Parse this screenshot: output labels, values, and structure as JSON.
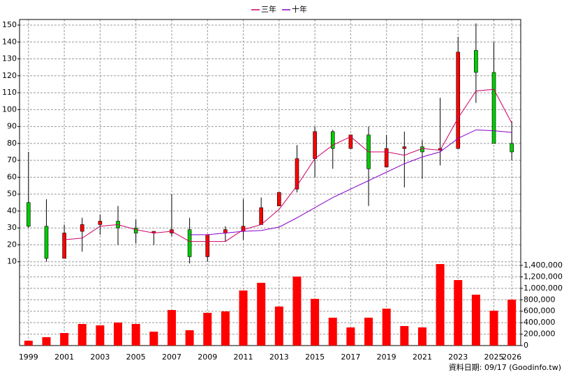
{
  "chart_data": [
    {
      "type": "candlestick",
      "categories": [
        "1999",
        null,
        "2001",
        null,
        "2003",
        null,
        "2005",
        null,
        "2007",
        null,
        "2009",
        null,
        "2011",
        null,
        "2013",
        null,
        "2015",
        null,
        "2017",
        null,
        "2019",
        null,
        "2021",
        null,
        "2023",
        null,
        "2025",
        "2026"
      ],
      "open": [
        45,
        31,
        12,
        28,
        32,
        34,
        30,
        27,
        27,
        29,
        13,
        27,
        28,
        32,
        43,
        53,
        71,
        87,
        77,
        85,
        66,
        77,
        78,
        76,
        77,
        135,
        122,
        80
      ],
      "high": [
        75,
        47,
        32,
        36,
        38,
        43,
        35,
        28,
        50,
        36,
        26,
        31,
        47,
        48,
        51,
        79,
        90,
        88,
        85,
        90,
        85,
        87,
        82,
        107,
        143,
        151,
        140,
        93
      ],
      "low": [
        30,
        10,
        12,
        16,
        26,
        20,
        21,
        20,
        25,
        9,
        10,
        22,
        23,
        32,
        43,
        51,
        60,
        65,
        77,
        43,
        66,
        54,
        59,
        67,
        77,
        104,
        80,
        70
      ],
      "close": [
        31,
        12,
        27,
        32,
        34,
        30,
        27,
        28,
        29,
        13,
        26,
        29,
        31,
        42,
        51,
        71,
        87,
        77,
        85,
        65,
        77,
        78,
        75,
        77,
        134,
        122,
        80,
        75
      ],
      "up_color": "#ff0000",
      "down_color": "#00cc00",
      "series": [
        {
          "name": "三年",
          "color": "#cc0066",
          "values": [
            null,
            null,
            23,
            24,
            31,
            32,
            29,
            27,
            28,
            22,
            22,
            22,
            29,
            32,
            41,
            55,
            71,
            79,
            84,
            75,
            75,
            73,
            77,
            76,
            95,
            111,
            112,
            92
          ]
        },
        {
          "name": "十年",
          "color": "#8800cc",
          "values": [
            null,
            null,
            null,
            null,
            null,
            null,
            null,
            null,
            null,
            26,
            26,
            27,
            28,
            28.5,
            30.5,
            36,
            42,
            48,
            53,
            58,
            63,
            68,
            72,
            75,
            83,
            88,
            87.5,
            86.5
          ]
        }
      ],
      "ylim": [
        7,
        153.3
      ],
      "yticks": [
        10,
        20,
        30,
        40,
        50,
        60,
        70,
        80,
        90,
        100,
        110,
        120,
        130,
        140,
        150
      ],
      "grid": true,
      "legend": "top"
    },
    {
      "type": "bar",
      "values": [
        85000,
        146000,
        219000,
        377000,
        353000,
        402000,
        377000,
        243000,
        621000,
        268000,
        572000,
        597000,
        962000,
        1096000,
        682000,
        1205000,
        816000,
        487000,
        317000,
        487000,
        645000,
        341000,
        317000,
        1424000,
        1144000,
        889000,
        609000,
        803000
      ],
      "color": "#ff0000",
      "ylim": [
        0,
        1424000
      ],
      "yticks": [
        0,
        {
          "value": 200000,
          "label": "200,000"
        },
        {
          "value": 400000,
          "label": "400,000"
        },
        {
          "value": 600000,
          "label": "600,000"
        },
        {
          "value": 800000,
          "label": "800,000"
        },
        {
          "value": 1000000,
          "label": "1,000,000"
        },
        {
          "value": 1200000,
          "label": "1,200,000"
        },
        {
          "value": 1400000,
          "label": "1,400,000"
        }
      ],
      "grid": true
    }
  ],
  "footer": "資料日期: 09/17  (Goodinfo.tw)"
}
